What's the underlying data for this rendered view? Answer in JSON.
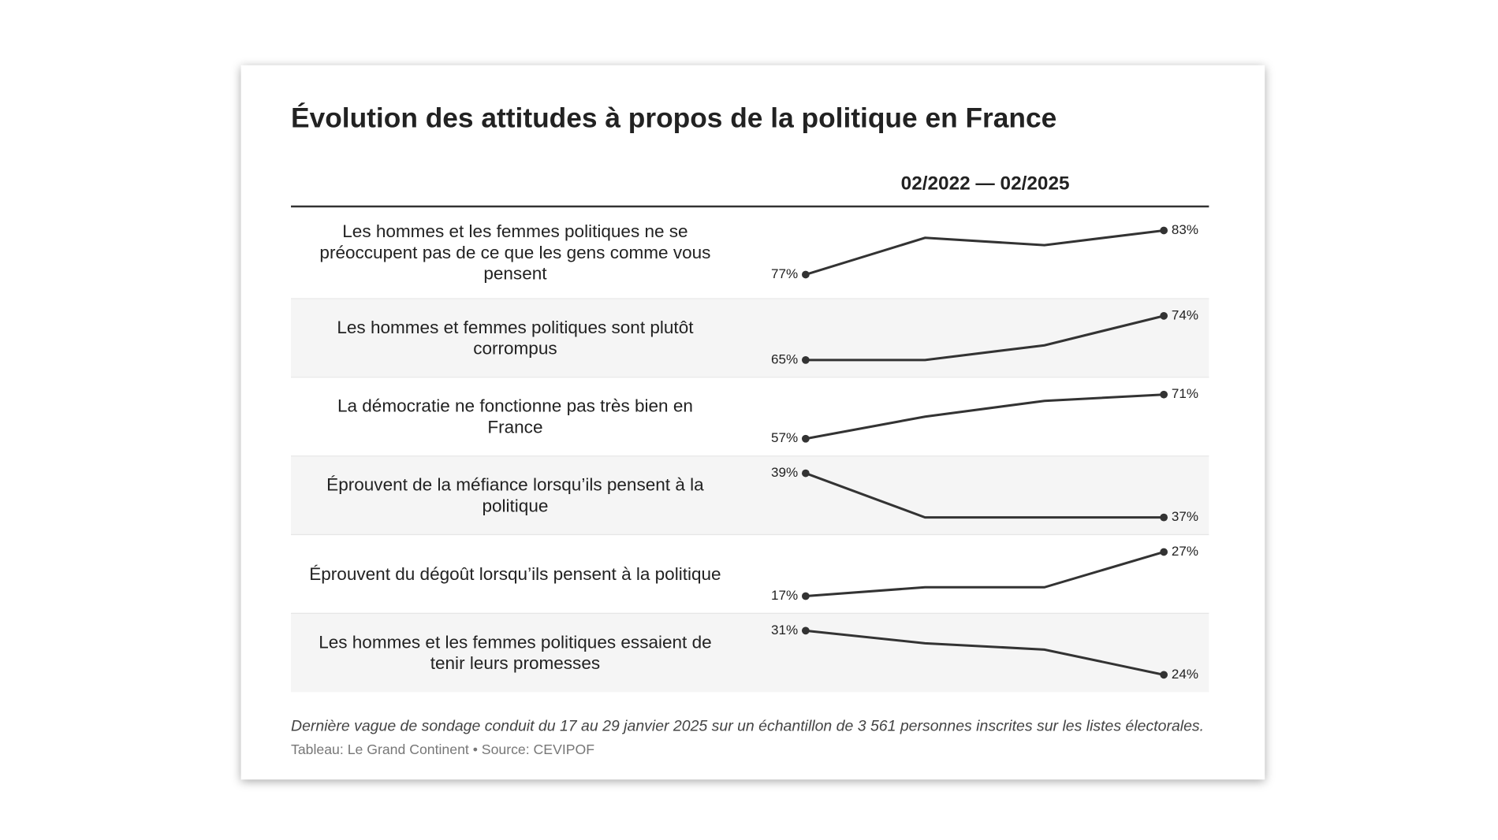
{
  "chart_data": {
    "type": "sparkline-table",
    "title": "Évolution des attitudes à propos de la politique en France",
    "column_header": "02/2022 — 02/2025",
    "color": "#333333",
    "rows": [
      {
        "label": "Les hommes et les femmes politiques ne se préoccupent pas de ce que les gens comme vous pensent",
        "values": [
          77,
          82,
          81,
          83
        ],
        "value_labels": [
          "77%",
          null,
          null,
          "83%"
        ]
      },
      {
        "label": "Les hommes et femmes politiques sont plutôt corrompus",
        "values": [
          65,
          65,
          68,
          74
        ],
        "value_labels": [
          "65%",
          null,
          null,
          "74%"
        ]
      },
      {
        "label": "La démocratie ne fonctionne pas très bien en France",
        "values": [
          57,
          64,
          69,
          71
        ],
        "value_labels": [
          "57%",
          null,
          null,
          "71%"
        ]
      },
      {
        "label": "Éprouvent de la méfiance lorsqu’ils pensent à la politique",
        "values": [
          39,
          37,
          37,
          37
        ],
        "value_labels": [
          "39%",
          null,
          null,
          "37%"
        ]
      },
      {
        "label": "Éprouvent du dégoût lorsqu’ils pensent à la politique",
        "values": [
          17,
          19,
          19,
          27
        ],
        "value_labels": [
          "17%",
          null,
          null,
          "27%"
        ]
      },
      {
        "label": "Les hommes et les femmes politiques essaient de tenir leurs promesses",
        "values": [
          31,
          29,
          28,
          24
        ],
        "value_labels": [
          "31%",
          null,
          null,
          "24%"
        ]
      }
    ],
    "note": "Dernière vague de sondage conduit du 17 au 29 janvier 2025 sur un échantillon de 3 561 personnes inscrites sur les listes électorales.",
    "source": "Tableau: Le Grand Continent • Source: CEVIPOF"
  }
}
